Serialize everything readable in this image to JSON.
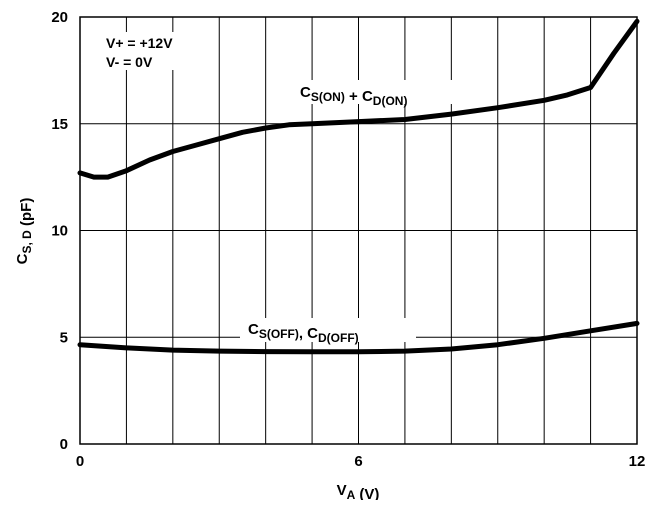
{
  "chart_data": {
    "type": "line",
    "xlim": [
      0,
      12
    ],
    "ylim": [
      0,
      20
    ],
    "x_ticks": [
      "0",
      "6",
      "12"
    ],
    "y_ticks": [
      "0",
      "5",
      "10",
      "15",
      "20"
    ],
    "xlabel": {
      "main": "V",
      "sub": "A",
      "rest": " (V)"
    },
    "ylabel": {
      "main": "C",
      "sub": "S, D",
      "rest": " (pF)"
    },
    "grid": true,
    "conditions": [
      "V+ = +12V",
      "V- = 0V"
    ],
    "series": [
      {
        "name": "CS(ON) + CD(ON)",
        "label": [
          {
            "t": "C",
            "sub": false
          },
          {
            "t": "S(ON)",
            "sub": true
          },
          {
            "t": " + C",
            "sub": false
          },
          {
            "t": "D(ON)",
            "sub": true
          }
        ],
        "x": [
          0,
          0.3,
          0.6,
          1.0,
          1.5,
          2.0,
          2.5,
          3.0,
          3.5,
          4.0,
          4.5,
          5.0,
          6.0,
          7.0,
          8.0,
          9.0,
          10.0,
          10.5,
          11.0,
          11.5,
          12.0
        ],
        "y": [
          12.7,
          12.5,
          12.5,
          12.8,
          13.3,
          13.7,
          14.0,
          14.3,
          14.6,
          14.8,
          14.95,
          15.0,
          15.1,
          15.2,
          15.45,
          15.75,
          16.1,
          16.35,
          16.7,
          18.3,
          19.8
        ]
      },
      {
        "name": "CS(OFF), CD(OFF)",
        "label": [
          {
            "t": "C",
            "sub": false
          },
          {
            "t": "S(OFF)",
            "sub": true
          },
          {
            "t": ", C",
            "sub": false
          },
          {
            "t": "D(OFF)",
            "sub": true
          }
        ],
        "x": [
          0,
          1,
          2,
          3,
          4,
          5,
          6,
          7,
          8,
          9,
          10,
          11,
          12
        ],
        "y": [
          4.65,
          4.5,
          4.4,
          4.35,
          4.33,
          4.32,
          4.32,
          4.35,
          4.45,
          4.65,
          4.95,
          5.3,
          5.65
        ]
      }
    ]
  }
}
